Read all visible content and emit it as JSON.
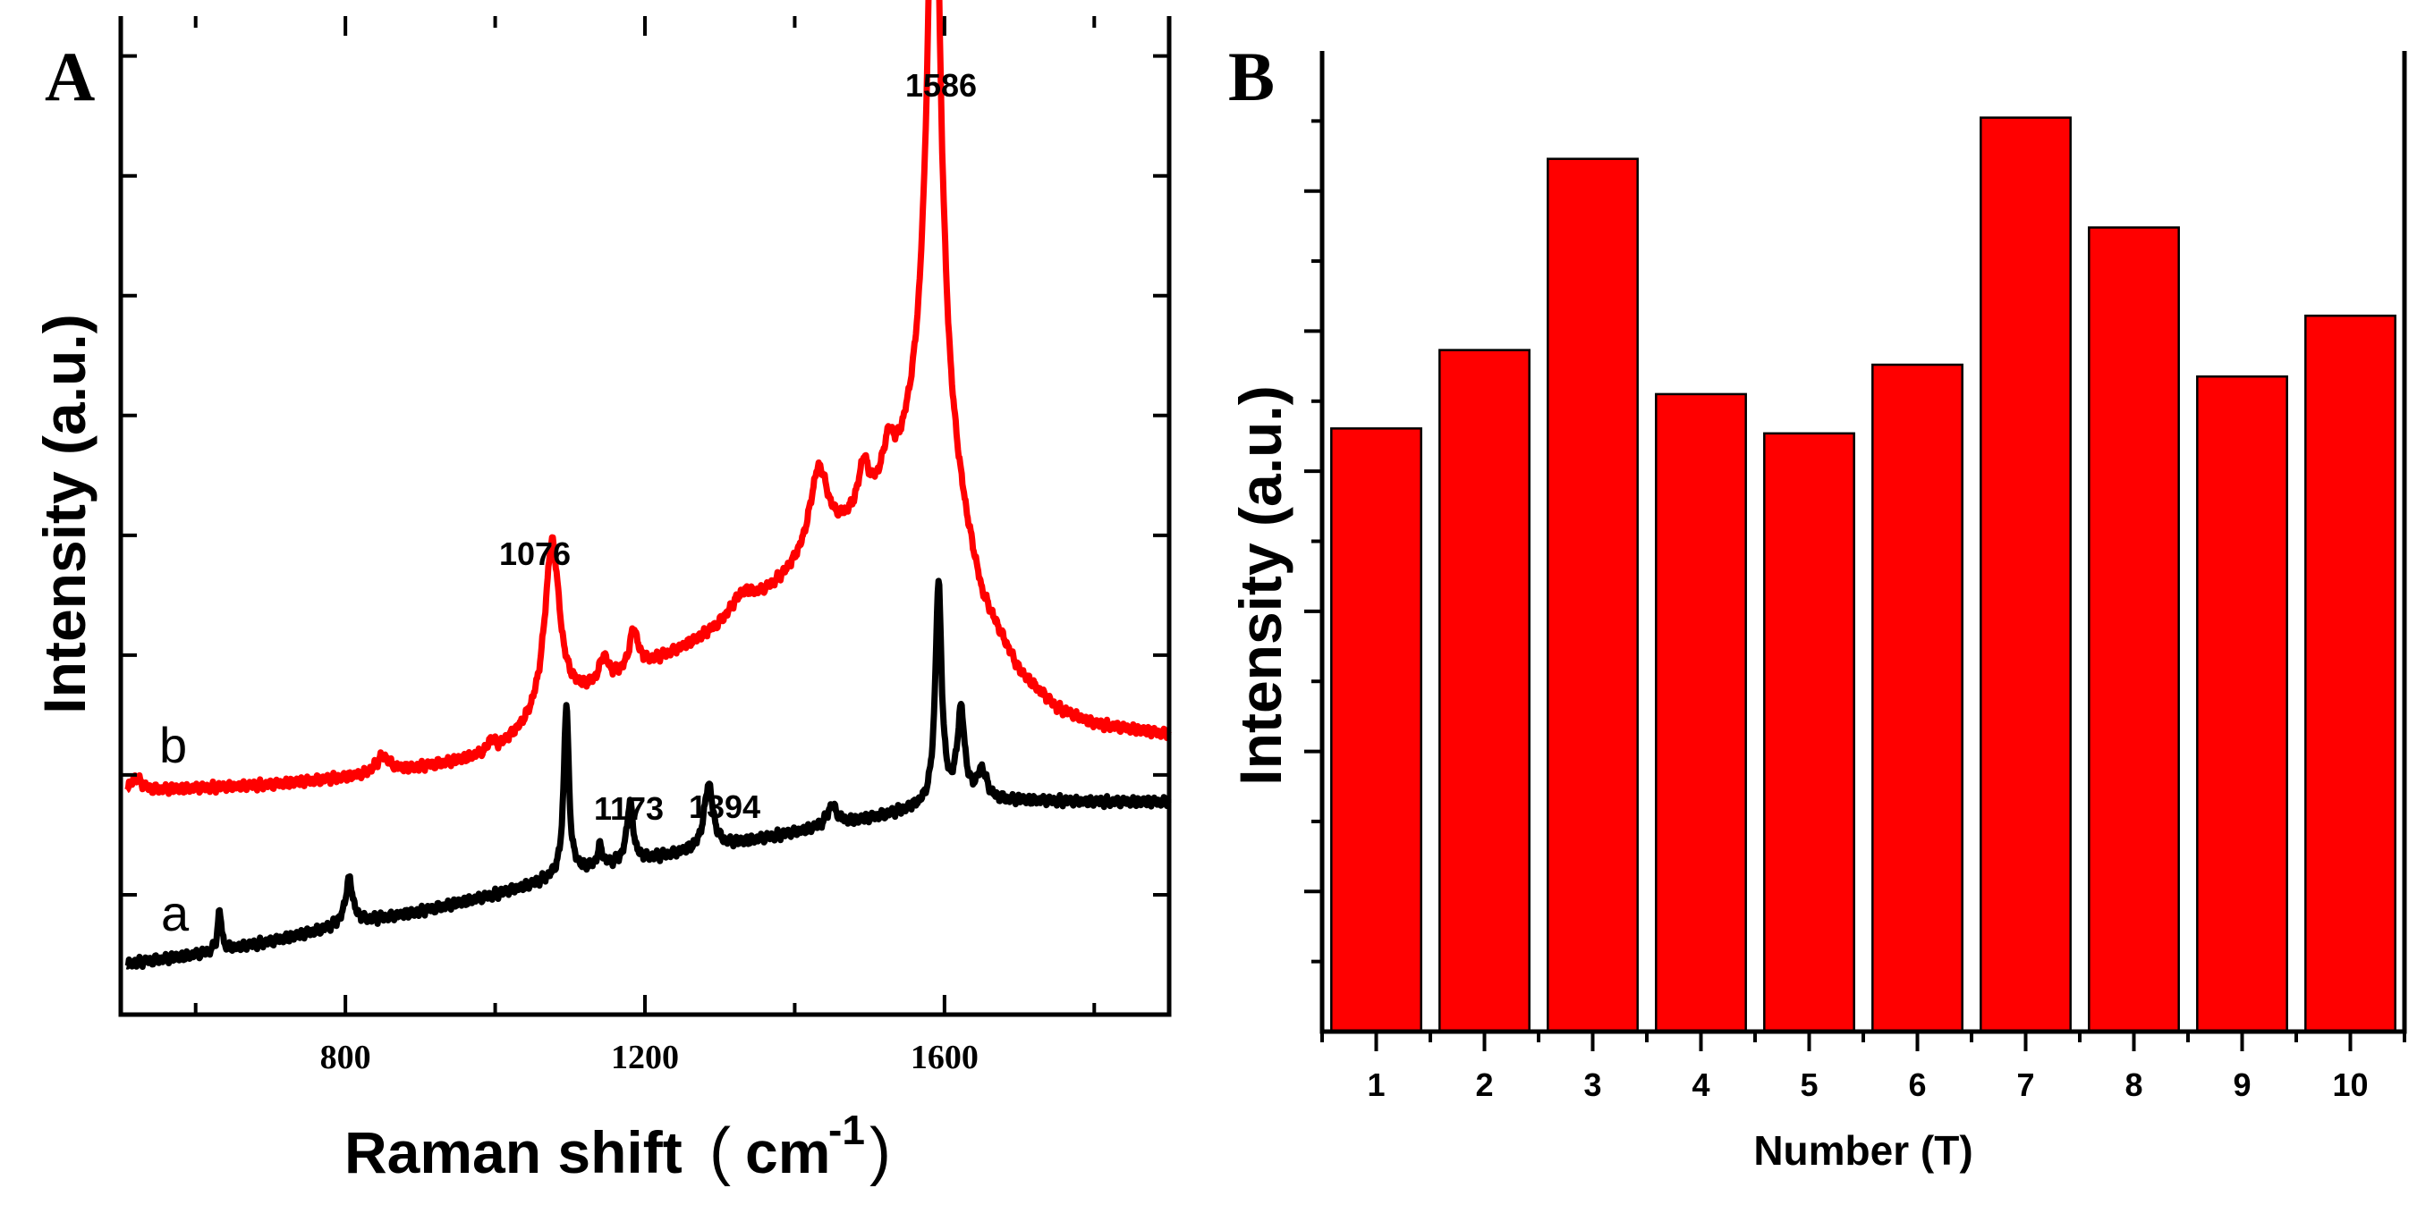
{
  "colors": {
    "spectrum_b": "#ff0000",
    "spectrum_a": "#000000",
    "bar_fill": "#ff0000",
    "bar_edge": "#000000"
  },
  "chart_data": [
    {
      "panel": "A",
      "type": "line",
      "title": "",
      "xlabel_main": "Raman shift",
      "xlabel_open": "(",
      "xlabel_unit": "cm",
      "xlabel_exp": "-1",
      "xlabel_close": ")",
      "ylabel": "Intensity (a.u.)",
      "xlim": [
        500,
        1900
      ],
      "ylim": [
        0,
        100
      ],
      "xticks": [
        800,
        1200,
        1600
      ],
      "xtick_labels": [
        "800",
        "1200",
        "1600"
      ],
      "series": [
        {
          "name": "b",
          "color": "#ff0000",
          "baseline": [
            [
              500,
              22
            ],
            [
              560,
              22.5
            ],
            [
              700,
              23
            ],
            [
              850,
              24
            ],
            [
              950,
              25.3
            ],
            [
              1000,
              26.2
            ],
            [
              1100,
              31
            ],
            [
              1150,
              33
            ],
            [
              1200,
              34.8
            ],
            [
              1250,
              36.5
            ],
            [
              1300,
              38.5
            ],
            [
              1350,
              41
            ],
            [
              1400,
              44
            ],
            [
              1450,
              47
            ],
            [
              1500,
              50.5
            ],
            [
              1540,
              54.5
            ],
            [
              1570,
              60
            ],
            [
              1600,
              57
            ],
            [
              1630,
              47
            ],
            [
              1650,
              41
            ],
            [
              1700,
              34
            ],
            [
              1750,
              30.5
            ],
            [
              1800,
              29
            ],
            [
              1900,
              28
            ]
          ],
          "peaks": [
            [
              520,
              1.5,
              10
            ],
            [
              850,
              1.8,
              12
            ],
            [
              995,
              1.2,
              5
            ],
            [
              1076,
              17.5,
              12
            ],
            [
              1145,
              2.5,
              7
            ],
            [
              1185,
              4,
              7
            ],
            [
              1330,
              2,
              20
            ],
            [
              1432,
              8.5,
              15
            ],
            [
              1492,
              4.5,
              8
            ],
            [
              1525,
              3.5,
              8
            ],
            [
              1586,
              65,
              10
            ]
          ]
        },
        {
          "name": "a",
          "color": "#000000",
          "baseline": [
            [
              500,
              5
            ],
            [
              600,
              6
            ],
            [
              700,
              7.3
            ],
            [
              800,
              9
            ],
            [
              900,
              10.3
            ],
            [
              1000,
              12
            ],
            [
              1050,
              13
            ],
            [
              1100,
              14.2
            ],
            [
              1200,
              15.5
            ],
            [
              1300,
              16.8
            ],
            [
              1400,
              18.2
            ],
            [
              1500,
              19.6
            ],
            [
              1560,
              20.5
            ],
            [
              1600,
              21
            ],
            [
              1700,
              21.4
            ],
            [
              1800,
              21.3
            ],
            [
              1900,
              21.3
            ]
          ],
          "peaks": [
            [
              632,
              4,
              3
            ],
            [
              805,
              4.5,
              6
            ],
            [
              1095,
              17,
              4
            ],
            [
              1140,
              2,
              4
            ],
            [
              1180,
              6,
              5
            ],
            [
              1285,
              6.5,
              7
            ],
            [
              1450,
              2,
              8
            ],
            [
              1592,
              22,
              5
            ],
            [
              1622,
              9,
              6
            ],
            [
              1650,
              3,
              8
            ]
          ]
        }
      ],
      "curve_labels": [
        "b",
        "a"
      ],
      "annotations": [
        {
          "text": "1586",
          "x": 1586
        },
        {
          "text": "1076",
          "x": 1076
        },
        {
          "text": "1173",
          "x": 1173
        },
        {
          "text": "1394",
          "x": 1394
        }
      ]
    },
    {
      "panel": "B",
      "type": "bar",
      "title": "",
      "xlabel": "Number (T)",
      "ylabel": "Intensity (a.u.)",
      "categories": [
        "1",
        "2",
        "3",
        "4",
        "5",
        "6",
        "7",
        "8",
        "9",
        "10"
      ],
      "values": [
        61.5,
        69.5,
        89,
        65,
        61,
        68,
        93.2,
        82,
        66.8,
        73
      ],
      "ylim": [
        0,
        100
      ]
    }
  ]
}
